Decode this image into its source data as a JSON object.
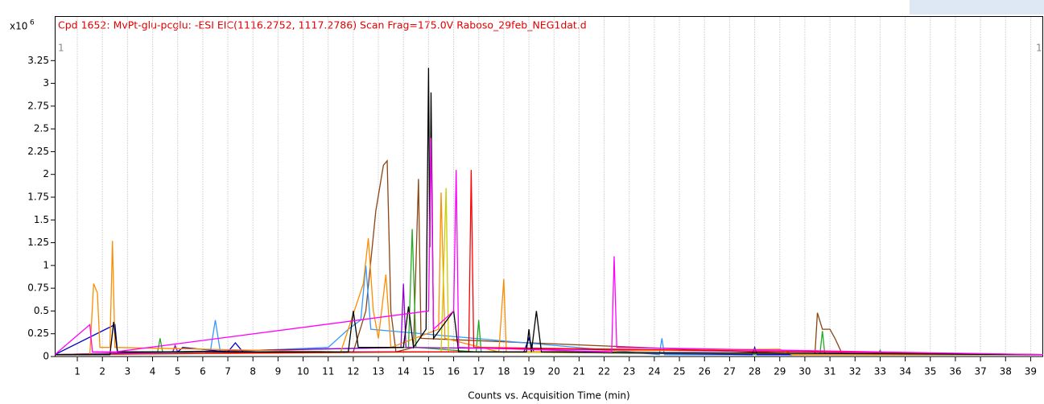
{
  "chart_data": {
    "type": "line",
    "title": "Cpd 1652: MvPt-glu-pcglu: -ESI EIC(1116.2752, 1117.2786) Scan Frag=175.0V Raboso_29feb_NEG1dat.d",
    "y_multiplier": "x10",
    "y_exponent": "6",
    "corner_labels": [
      "1",
      "1"
    ],
    "x_label": "Counts vs. Acquisition Time (min)",
    "xlim": [
      0.1,
      39.5
    ],
    "ylim": [
      0,
      3.5
    ],
    "xticks": [
      1,
      2,
      3,
      4,
      5,
      6,
      7,
      8,
      9,
      10,
      11,
      12,
      13,
      14,
      15,
      16,
      17,
      18,
      19,
      20,
      21,
      22,
      23,
      24,
      25,
      26,
      27,
      28,
      29,
      30,
      31,
      32,
      33,
      34,
      35,
      36,
      37,
      38,
      39
    ],
    "yticks": [
      0,
      0.25,
      0.5,
      0.75,
      1,
      1.25,
      1.5,
      1.75,
      2,
      2.25,
      2.5,
      2.75,
      3,
      3.25
    ],
    "grid": "x",
    "series": [
      {
        "color": "#8b4513",
        "x": [
          0.1,
          12.0,
          12.5,
          12.9,
          13.2,
          13.35,
          13.5,
          13.7,
          14.4,
          14.6,
          14.7,
          30.4,
          30.5,
          30.7,
          31.0,
          31.2,
          31.5,
          39.5
        ],
        "values": [
          0.02,
          0.05,
          0.5,
          1.6,
          2.1,
          2.15,
          0.5,
          0.05,
          0.1,
          1.95,
          0.2,
          0.02,
          0.48,
          0.3,
          0.3,
          0.2,
          0.02,
          0.02
        ]
      },
      {
        "color": "#3399ff",
        "x": [
          0.1,
          6.3,
          6.5,
          6.7,
          11.0,
          11.8,
          12.3,
          12.5,
          12.7,
          24.2,
          24.3,
          24.4,
          39.5
        ],
        "values": [
          0.02,
          0.05,
          0.4,
          0.05,
          0.1,
          0.3,
          0.4,
          1.0,
          0.3,
          0.02,
          0.2,
          0.02,
          0.02
        ]
      },
      {
        "color": "#22aa22",
        "x": [
          0.1,
          4.2,
          4.3,
          4.4,
          14.2,
          14.35,
          14.5,
          16.9,
          17.0,
          17.1,
          30.6,
          30.7,
          30.8,
          32.9,
          33.0,
          33.1,
          39.5
        ],
        "values": [
          0.02,
          0.05,
          0.2,
          0.05,
          0.1,
          1.4,
          0.1,
          0.05,
          0.4,
          0.05,
          0.02,
          0.28,
          0.02,
          0.02,
          0.07,
          0.02,
          0.02
        ]
      },
      {
        "color": "#9400d3",
        "x": [
          0.1,
          4.8,
          4.9,
          5.0,
          13.9,
          14.0,
          14.1,
          39.5
        ],
        "values": [
          0.02,
          0.05,
          0.12,
          0.05,
          0.1,
          0.8,
          0.1,
          0.02
        ]
      },
      {
        "color": "#0000cc",
        "x": [
          0.1,
          2.5,
          2.6,
          5.0,
          5.2,
          7.0,
          7.3,
          7.6,
          18.8,
          19.0,
          19.2,
          27.9,
          28.0,
          28.1,
          39.5
        ],
        "values": [
          0.02,
          0.35,
          0.05,
          0.05,
          0.1,
          0.05,
          0.15,
          0.05,
          0.05,
          0.2,
          0.05,
          0.02,
          0.1,
          0.02,
          0.02
        ]
      },
      {
        "color": "#ff8c00",
        "x": [
          0.1,
          1.5,
          1.65,
          1.8,
          1.9,
          2.3,
          2.4,
          2.5,
          11.5,
          12.4,
          12.6,
          12.8,
          13.0,
          13.3,
          13.5,
          15.4,
          15.5,
          15.65,
          17.8,
          18.0,
          18.1,
          29.0,
          29.5,
          39.5
        ],
        "values": [
          0.02,
          0.02,
          0.8,
          0.7,
          0.1,
          0.1,
          1.27,
          0.1,
          0.05,
          0.8,
          1.3,
          0.5,
          0.2,
          0.9,
          0.1,
          0.3,
          1.8,
          0.2,
          0.05,
          0.85,
          0.05,
          0.08,
          0.02,
          0.02
        ]
      },
      {
        "color": "#cccc00",
        "x": [
          0.1,
          15.5,
          15.7,
          15.8,
          39.5
        ],
        "values": [
          0.02,
          0.05,
          1.85,
          0.05,
          0.02
        ]
      },
      {
        "color": "#ff0000",
        "x": [
          0.1,
          14.0,
          16.6,
          16.7,
          16.8,
          39.5
        ],
        "values": [
          0.02,
          0.05,
          0.05,
          2.05,
          0.1,
          0.02
        ]
      },
      {
        "color": "#000000",
        "x": [
          0.1,
          2.3,
          2.45,
          2.6,
          11.8,
          12.0,
          12.2,
          14.0,
          14.2,
          14.4,
          14.9,
          15.0,
          15.05,
          15.1,
          15.2,
          16.0,
          16.2,
          18.9,
          19.0,
          19.1,
          19.3,
          19.5,
          39.5
        ],
        "values": [
          0.02,
          0.02,
          0.38,
          0.05,
          0.05,
          0.5,
          0.1,
          0.1,
          0.55,
          0.1,
          0.3,
          3.17,
          1.2,
          2.9,
          0.2,
          0.5,
          0.05,
          0.05,
          0.3,
          0.05,
          0.5,
          0.05,
          0.02
        ]
      },
      {
        "color": "#ff00ff",
        "x": [
          0.1,
          1.5,
          1.6,
          2.5,
          15.0,
          15.1,
          15.2,
          16.0,
          16.1,
          16.2,
          22.3,
          22.4,
          22.5,
          39.5
        ],
        "values": [
          0.02,
          0.35,
          0.05,
          0.05,
          0.5,
          2.4,
          0.3,
          0.5,
          2.05,
          0.1,
          0.05,
          1.1,
          0.1,
          0.02
        ]
      }
    ]
  }
}
